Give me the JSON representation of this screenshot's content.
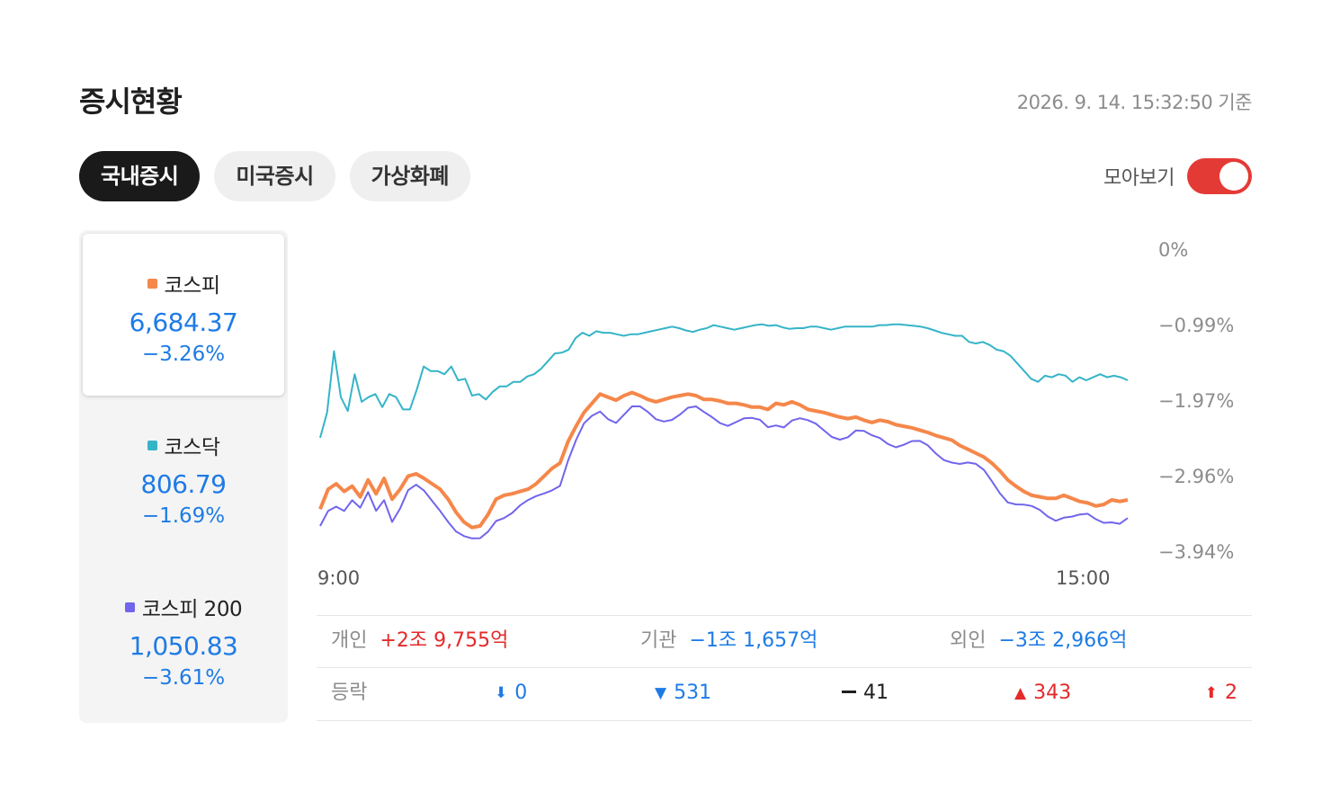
{
  "title": "증시현황",
  "timestamp": "2026. 9. 14. 15:32:50 기준",
  "tabs": [
    {
      "label": "국내증시",
      "active": true
    },
    {
      "label": "미국증시",
      "active": false
    },
    {
      "label": "가상화폐",
      "active": false
    }
  ],
  "toggle": {
    "label": "모아보기",
    "on": true,
    "color": "#e43a35"
  },
  "indices": [
    {
      "name": "코스피",
      "value": "6,684.37",
      "change": "−3.26%",
      "color": "#f5874a",
      "active": true
    },
    {
      "name": "코스닥",
      "value": "806.79",
      "change": "−1.69%",
      "color": "#35b4c8",
      "active": false
    },
    {
      "name": "코스피 200",
      "value": "1,050.83",
      "change": "−3.61%",
      "color": "#7165ec",
      "active": false
    }
  ],
  "chart_data": {
    "type": "line",
    "y_tick_labels": [
      "0%",
      "−0.99%",
      "−1.97%",
      "−2.96%",
      "−3.94%"
    ],
    "x_tick_labels": [
      "9:00",
      "15:00"
    ],
    "ylim": [
      -3.94,
      0
    ],
    "grid": false,
    "series": [
      {
        "name": "코스닥",
        "color": "#35b4c8",
        "values": [
          -2.45,
          -2.12,
          -1.32,
          -1.92,
          -2.1,
          -1.62,
          -1.98,
          -1.92,
          -1.88,
          -2.05,
          -1.88,
          -1.92,
          -2.08,
          -2.08,
          -1.82,
          -1.52,
          -1.58,
          -1.58,
          -1.62,
          -1.52,
          -1.7,
          -1.68,
          -1.9,
          -1.88,
          -1.95,
          -1.85,
          -1.78,
          -1.78,
          -1.72,
          -1.72,
          -1.65,
          -1.62,
          -1.55,
          -1.45,
          -1.35,
          -1.34,
          -1.3,
          -1.15,
          -1.08,
          -1.12,
          -1.06,
          -1.08,
          -1.08,
          -1.1,
          -1.12,
          -1.1,
          -1.1,
          -1.08,
          -1.06,
          -1.04,
          -1.02,
          -1,
          -1.02,
          -1.05,
          -1.07,
          -1.04,
          -1.02,
          -0.98,
          -1,
          -1.02,
          -1.04,
          -1.02,
          -1.0,
          -0.98,
          -0.97,
          -0.99,
          -0.98,
          -1.01,
          -1.03,
          -1.02,
          -1.02,
          -1.0,
          -1.0,
          -1.02,
          -1.04,
          -1.02,
          -1.0,
          -1.0,
          -1.0,
          -1.0,
          -1.0,
          -0.98,
          -0.98,
          -0.97,
          -0.97,
          -0.98,
          -0.99,
          -1.0,
          -1.02,
          -1.05,
          -1.08,
          -1.1,
          -1.12,
          -1.12,
          -1.2,
          -1.22,
          -1.2,
          -1.24,
          -1.3,
          -1.32,
          -1.38,
          -1.48,
          -1.58,
          -1.68,
          -1.72,
          -1.64,
          -1.66,
          -1.62,
          -1.64,
          -1.72,
          -1.66,
          -1.7,
          -1.66,
          -1.62,
          -1.66,
          -1.64,
          -1.66,
          -1.7
        ]
      },
      {
        "name": "코스피",
        "color": "#f5874a",
        "values": [
          -3.38,
          -3.12,
          -3.05,
          -3.15,
          -3.08,
          -3.22,
          -3.0,
          -3.18,
          -2.98,
          -3.25,
          -3.12,
          -2.95,
          -2.92,
          -2.98,
          -3.05,
          -3.12,
          -3.25,
          -3.42,
          -3.55,
          -3.62,
          -3.6,
          -3.45,
          -3.25,
          -3.2,
          -3.18,
          -3.15,
          -3.12,
          -3.05,
          -2.95,
          -2.85,
          -2.78,
          -2.5,
          -2.3,
          -2.12,
          -2.0,
          -1.88,
          -1.92,
          -1.96,
          -1.9,
          -1.86,
          -1.9,
          -1.95,
          -1.98,
          -1.95,
          -1.92,
          -1.9,
          -1.88,
          -1.9,
          -1.95,
          -1.95,
          -1.97,
          -2.0,
          -2.0,
          -2.02,
          -2.05,
          -2.05,
          -2.08,
          -2.0,
          -2.02,
          -1.98,
          -2.02,
          -2.08,
          -2.1,
          -2.12,
          -2.15,
          -2.18,
          -2.2,
          -2.18,
          -2.22,
          -2.25,
          -2.22,
          -2.24,
          -2.28,
          -2.3,
          -2.32,
          -2.35,
          -2.38,
          -2.42,
          -2.45,
          -2.48,
          -2.55,
          -2.6,
          -2.65,
          -2.7,
          -2.78,
          -2.88,
          -3.0,
          -3.08,
          -3.15,
          -3.2,
          -3.22,
          -3.24,
          -3.24,
          -3.2,
          -3.24,
          -3.28,
          -3.3,
          -3.34,
          -3.32,
          -3.26,
          -3.28,
          -3.26
        ]
      }
    ]
  },
  "investors": [
    {
      "label": "개인",
      "value": "+2조 9,755억",
      "color": "red"
    },
    {
      "label": "기관",
      "value": "−1조 1,657억",
      "color": "blue"
    },
    {
      "label": "외인",
      "value": "−3조 2,966억",
      "color": "blue"
    }
  ],
  "breadth": {
    "label": "등락",
    "items": [
      {
        "icon": "lower-limit-arrow-icon",
        "symbol": "⬇",
        "value": "0",
        "color": "blue"
      },
      {
        "icon": "down-triangle-icon",
        "symbol": "▼",
        "value": "531",
        "color": "blue"
      },
      {
        "icon": "flat-dash-icon",
        "symbol": "",
        "value": "41",
        "color": "black"
      },
      {
        "icon": "up-triangle-icon",
        "symbol": "▲",
        "value": "343",
        "color": "red"
      },
      {
        "icon": "upper-limit-arrow-icon",
        "symbol": "⬆",
        "value": "2",
        "color": "red"
      }
    ]
  }
}
